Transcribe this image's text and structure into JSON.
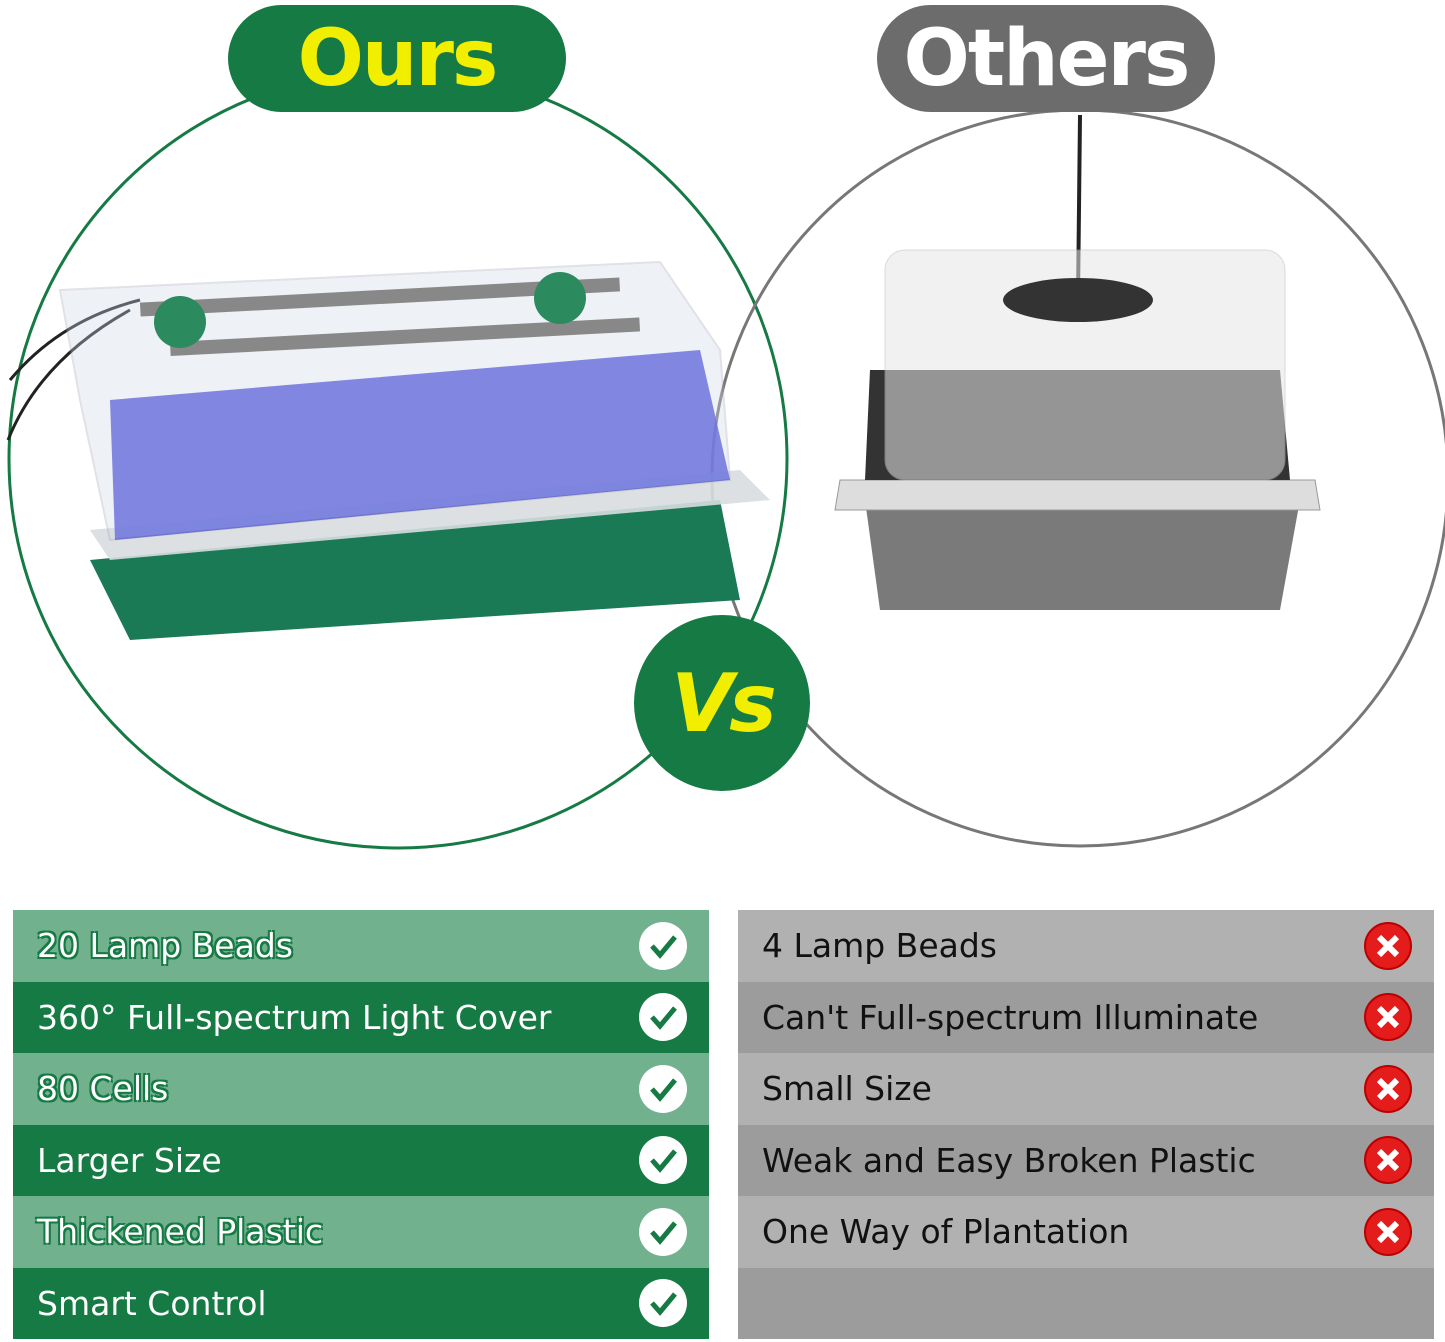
{
  "header": {
    "ours_label": "Ours",
    "others_label": "Others",
    "vs_label": "Vs"
  },
  "colors": {
    "ours_green": "#157a43",
    "ours_light_green": "#72b18e",
    "title_yellow": "#f2ee00",
    "others_gray": "#6c6c6c",
    "cross_red": "#e51c1c"
  },
  "ours_features": [
    {
      "label": "20 Lamp Beads",
      "icon": "check-icon"
    },
    {
      "label": "360° Full-spectrum Light Cover",
      "icon": "check-icon"
    },
    {
      "label": "80 Cells",
      "icon": "check-icon"
    },
    {
      "label": "Larger Size",
      "icon": "check-icon"
    },
    {
      "label": "Thickened Plastic",
      "icon": "check-icon"
    },
    {
      "label": "Smart Control",
      "icon": "check-icon"
    }
  ],
  "others_features": [
    {
      "label": "4 Lamp Beads",
      "icon": "cross-icon"
    },
    {
      "label": "Can't Full-spectrum Illuminate",
      "icon": "cross-icon"
    },
    {
      "label": "Small Size",
      "icon": "cross-icon"
    },
    {
      "label": "Weak and Easy Broken Plastic",
      "icon": "cross-icon"
    },
    {
      "label": "One Way of Plantation",
      "icon": "cross-icon"
    }
  ]
}
